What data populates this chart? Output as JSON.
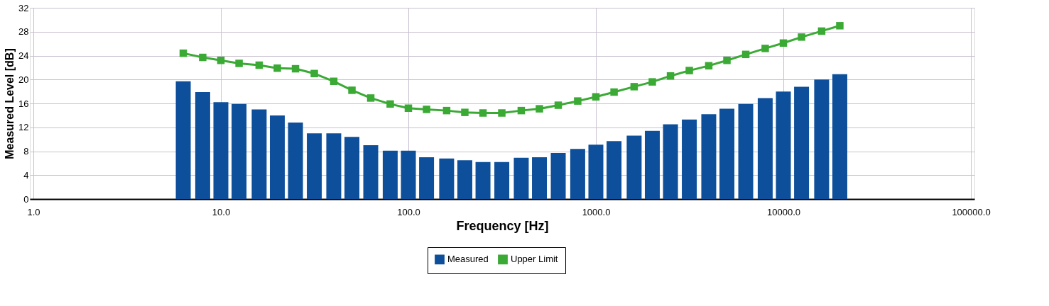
{
  "chart_data": {
    "type": "bar",
    "xlabel": "Frequency [Hz]",
    "ylabel": "Measured Level [dB]",
    "x": [
      6.3,
      8,
      10,
      12.5,
      16,
      20,
      25,
      31.5,
      40,
      50,
      63,
      80,
      100,
      125,
      160,
      200,
      250,
      315,
      400,
      500,
      630,
      800,
      1000,
      1250,
      1600,
      2000,
      2500,
      3150,
      4000,
      5000,
      6300,
      8000,
      10000,
      12500,
      16000,
      20000
    ],
    "series": [
      {
        "name": "Measured",
        "color": "#0d4f9a",
        "values": [
          19.7,
          17.9,
          16.2,
          15.9,
          15.0,
          14.0,
          12.8,
          11.0,
          11.0,
          10.4,
          9.0,
          8.1,
          8.1,
          7.0,
          6.8,
          6.5,
          6.2,
          6.2,
          6.9,
          7.0,
          7.7,
          8.4,
          9.1,
          9.7,
          10.6,
          11.4,
          12.5,
          13.3,
          14.2,
          15.1,
          15.9,
          16.9,
          18.0,
          18.8,
          20.0,
          20.9
        ]
      },
      {
        "name": "Upper Limit",
        "type": "line",
        "color": "#3aaa35",
        "marker": "square",
        "values": [
          24.4,
          23.7,
          23.2,
          22.7,
          22.4,
          21.9,
          21.8,
          21.0,
          19.7,
          18.2,
          16.9,
          15.9,
          15.2,
          15.0,
          14.8,
          14.5,
          14.4,
          14.4,
          14.8,
          15.1,
          15.7,
          16.4,
          17.1,
          17.9,
          18.8,
          19.6,
          20.6,
          21.5,
          22.3,
          23.2,
          24.2,
          25.2,
          26.1,
          27.1,
          28.1,
          29.0
        ]
      }
    ],
    "log": "x",
    "xlim": [
      1,
      100000
    ],
    "xticks": [
      {
        "value": 1,
        "label": "1.0"
      },
      {
        "value": 10,
        "label": "10.0"
      },
      {
        "value": 100,
        "label": "100.0"
      },
      {
        "value": 1000,
        "label": "1000.0"
      },
      {
        "value": 10000,
        "label": "10000.0"
      },
      {
        "value": 100000,
        "label": "100000.0"
      }
    ],
    "ylim": [
      0,
      32
    ],
    "yticks": [
      0,
      4,
      8,
      12,
      16,
      20,
      24,
      28,
      32
    ],
    "grid": true,
    "legend": "bottom"
  }
}
